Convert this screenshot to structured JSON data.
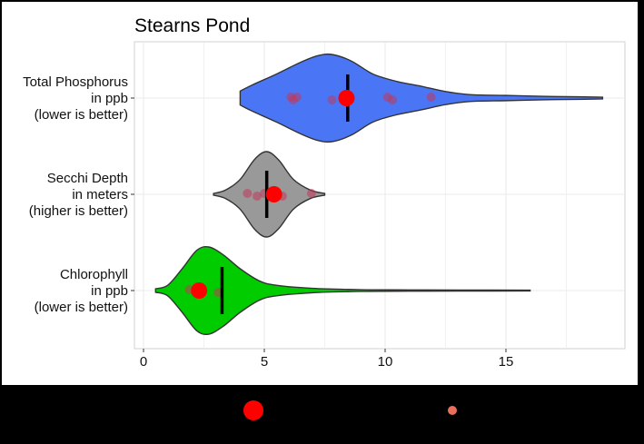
{
  "chart_data": {
    "type": "violin",
    "title": "Stearns Pond",
    "xlabel": "",
    "ylabel": "",
    "xlim": [
      -0.4,
      19.9
    ],
    "x_ticks": [
      0,
      5,
      10,
      15
    ],
    "x_tick_labels": [
      "0",
      "5",
      "10",
      "15"
    ],
    "grid": true,
    "categories": [
      {
        "label_lines": [
          "Total Phosphorus",
          "in ppb",
          "(lower is better)"
        ],
        "fill": "#4a76f5",
        "range": [
          4.0,
          19.0
        ],
        "mean_line": 8.45,
        "median": 8.4,
        "observations": [
          6.1,
          6.2,
          6.35,
          7.8,
          10.1,
          10.3,
          11.9
        ],
        "density_profile": [
          [
            4.0,
            0.16
          ],
          [
            4.5,
            0.3
          ],
          [
            5.5,
            0.55
          ],
          [
            6.5,
            0.82
          ],
          [
            7.2,
            0.97
          ],
          [
            7.8,
            1.0
          ],
          [
            8.6,
            0.85
          ],
          [
            9.5,
            0.55
          ],
          [
            10.5,
            0.38
          ],
          [
            11.5,
            0.27
          ],
          [
            12.5,
            0.15
          ],
          [
            13.5,
            0.08
          ],
          [
            15,
            0.06
          ],
          [
            16.5,
            0.04
          ],
          [
            18,
            0.03
          ],
          [
            19.0,
            0.02
          ]
        ]
      },
      {
        "label_lines": [
          "Secchi Depth",
          "in meters",
          "(higher is better)"
        ],
        "fill": "#999999",
        "range": [
          2.9,
          7.5
        ],
        "mean_line": 5.1,
        "median": 5.4,
        "observations": [
          4.3,
          4.7,
          5.0,
          5.75,
          6.95
        ],
        "density_profile": [
          [
            2.9,
            0.02
          ],
          [
            3.4,
            0.1
          ],
          [
            4.0,
            0.35
          ],
          [
            4.6,
            0.82
          ],
          [
            5.1,
            1.0
          ],
          [
            5.6,
            0.8
          ],
          [
            6.2,
            0.35
          ],
          [
            6.9,
            0.1
          ],
          [
            7.5,
            0.02
          ]
        ]
      },
      {
        "label_lines": [
          "Chlorophyll",
          "in ppb",
          "(lower is better)"
        ],
        "fill": "#00cc00",
        "range": [
          0.5,
          16.0
        ],
        "mean_line": 3.25,
        "median": 2.3,
        "observations": [
          1.9,
          3.1
        ],
        "density_profile": [
          [
            0.5,
            0.04
          ],
          [
            1.0,
            0.12
          ],
          [
            1.6,
            0.5
          ],
          [
            2.2,
            0.92
          ],
          [
            2.7,
            1.0
          ],
          [
            3.3,
            0.82
          ],
          [
            4.0,
            0.5
          ],
          [
            4.8,
            0.22
          ],
          [
            5.5,
            0.12
          ],
          [
            7,
            0.05
          ],
          [
            9,
            0.02
          ],
          [
            11,
            0.015
          ],
          [
            13,
            0.012
          ],
          [
            16,
            0.01
          ]
        ]
      }
    ],
    "legend": [
      {
        "marker": "large-dot",
        "color": "#ff0000"
      },
      {
        "marker": "small-dot",
        "color": "#e8705a"
      }
    ]
  },
  "colors": {
    "median_dot": "#ff0000",
    "observation_dot": "#c0395a",
    "line": "#000000",
    "grid": "#ebebeb",
    "panel_border": "#d9d9d9"
  }
}
